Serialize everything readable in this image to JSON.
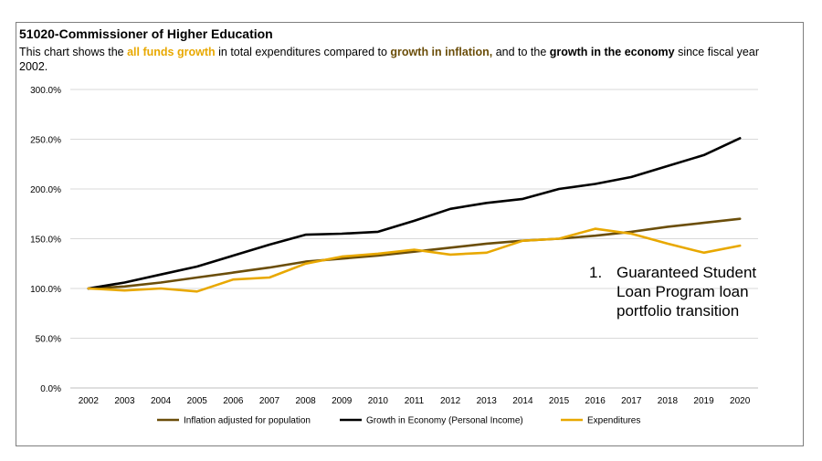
{
  "title": "51020-Commissioner of Higher Education",
  "subtitle": {
    "p1": "This chart shows the ",
    "h1": "all funds growth",
    "p2": " in total expenditures compared to ",
    "h2": "growth in inflation,",
    "p3": " and to the ",
    "h3": "growth in the economy",
    "p4": " since fiscal year 2002."
  },
  "note": {
    "number": "1.",
    "text": "Guaranteed Student Loan Program loan portfolio transition"
  },
  "colors": {
    "expenditures": "#E8A800",
    "inflation": "#6B4E0A",
    "economy": "#000000",
    "grid": "#d9d9d9"
  },
  "chart_data": {
    "type": "line",
    "x": [
      "2002",
      "2003",
      "2004",
      "2005",
      "2006",
      "2007",
      "2008",
      "2009",
      "2010",
      "2011",
      "2012",
      "2013",
      "2014",
      "2015",
      "2016",
      "2017",
      "2018",
      "2019",
      "2020"
    ],
    "ylim": [
      0,
      300
    ],
    "yticks": [
      "0.0%",
      "50.0%",
      "100.0%",
      "150.0%",
      "200.0%",
      "250.0%",
      "300.0%"
    ],
    "legend_position": "bottom",
    "series": [
      {
        "name": "Inflation adjusted for population",
        "color": "#6B4E0A",
        "values": [
          100,
          102,
          106,
          111,
          116,
          121,
          127,
          130,
          133,
          137,
          141,
          145,
          148,
          150,
          153,
          157,
          162,
          166,
          170
        ]
      },
      {
        "name": "Growth in Economy (Personal Income)",
        "color": "#000000",
        "values": [
          100,
          106,
          114,
          122,
          133,
          144,
          154,
          155,
          157,
          168,
          180,
          186,
          190,
          200,
          205,
          212,
          223,
          234,
          251
        ]
      },
      {
        "name": "Expenditures",
        "color": "#E8A800",
        "values": [
          100,
          98,
          100,
          97,
          109,
          111,
          125,
          132,
          135,
          139,
          134,
          136,
          148,
          150,
          160,
          155,
          145,
          136,
          143
        ]
      }
    ]
  }
}
